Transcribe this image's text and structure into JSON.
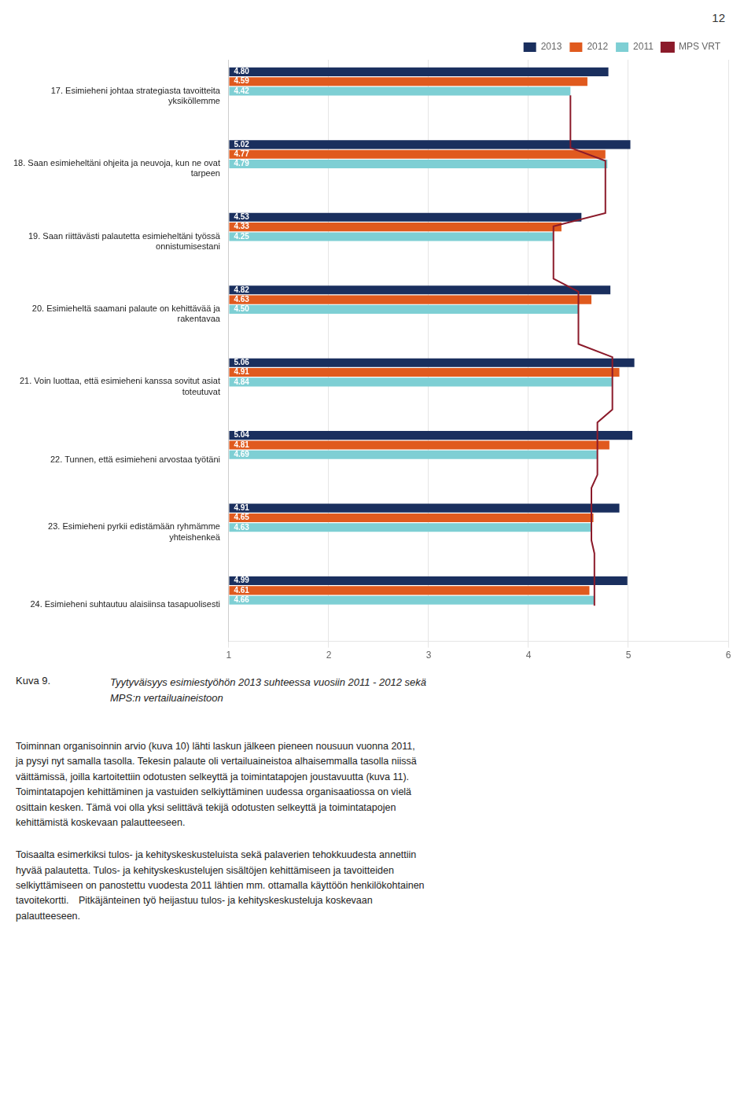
{
  "chart_data": {
    "type": "bar",
    "orientation": "horizontal",
    "title": "Kuva 9.",
    "subtitle": "Tyytyväisyys esimiestyöhön 2013 suhteessa vuosiin 2011 - 2012 sekä\nMPS:n vertailuaineistoon",
    "annotations": [
      "12",
      "Toiminnan organisoinnin arvio ​(kuva 10)​ lähti laskun jälkeen pieneen nousuun vuonna 2011,\nja pysyi nyt samalla tasolla. Tekesin palaute oli vertailuaineistoa alhaisemmalla tasolla niissä\nväittämissä, joilla kartoitettiin odotusten selkeyttä ja toimintatapojen joustavuutta (kuva 11).\nToimintatapojen kehittäminen ja vastuiden selkiyttäminen uudessa organisaatiossa on vielä\nosittain kesken. Tämä voi olla yksi selittävä tekijä odotusten selkeyttä ja toimintatapojen\nkehittämistä koskevaan palautteeseen.",
      "Toisaalta esimerkiksi tulos- ja kehityskeskusteluista sekä palaverien tehokkuudesta annettiin\nhyvää palautetta. Tulos- ja kehityskeskustelujen sisältöjen kehittämiseen ja tavoitteiden\nselkiyttämiseen on panostettu vuodesta 2011 lähtien mm. ottamalla käyttöön henkilökohtainen\ntavoitekortti. Pitkäjänteinen työ heijastuu tulos- ja kehityskeskusteluja koskevaan\npalautteeseen."
    ],
    "categories": [
      "17. Esimieheni johtaa strategiasta tavoitteita\nyksiköllemme",
      "18. Saan esimieheltäni ohjeita ja neuvoja, kun ne ovat\ntarpeen",
      "19. Saan riittävästi palautetta esimieheltäni työssä\nonnistumisestani",
      "20. Esimieheltä saamani palaute on kehittävää ja\nrakentavaa",
      "21. Voin luottaa, että esimieheni kanssa sovitut asiat\ntoteutuvat",
      "22. Tunnen, että esimieheni arvostaa työtäni",
      "23. Esimieheni pyrkii edistämään ryhmämme\nyhteishenkeä",
      "24. Esimieheni suhtautuu alaisiinsa tasapuolisesti"
    ],
    "series": [
      {
        "name": "2013",
        "color": "#1a2f5e",
        "values": [
          4.8,
          5.02,
          4.53,
          4.82,
          5.06,
          5.04,
          4.91,
          4.99
        ],
        "value_labels": [
          "4.80",
          "5.02",
          "4.53",
          "4.82",
          "5.06",
          "5.04",
          "4.91",
          "4.99"
        ]
      },
      {
        "name": "2012",
        "color": "#e05a1e",
        "values": [
          4.59,
          4.77,
          4.33,
          4.63,
          4.91,
          4.81,
          4.65,
          4.61
        ],
        "value_labels": [
          "4.59",
          "4.77",
          "4.33",
          "4.63",
          "4.91",
          "4.81",
          "4.65",
          "4.61"
        ]
      },
      {
        "name": "2011",
        "color": "#7ecfd4",
        "values": [
          4.42,
          4.79,
          4.25,
          4.5,
          4.84,
          4.69,
          4.63,
          4.66
        ],
        "value_labels": [
          "4.42",
          "4.79",
          "4.25",
          "4.50",
          "4.84",
          "4.69",
          "4.63",
          "4.66"
        ]
      },
      {
        "name": "MPS VRT",
        "type": "line",
        "color": "#8b1a2a",
        "values": [
          4.42,
          4.77,
          4.25,
          4.5,
          4.84,
          4.69,
          4.63,
          4.66
        ]
      }
    ],
    "xlim": [
      1,
      6
    ],
    "xticks": [
      1,
      2,
      3,
      4,
      5,
      6
    ],
    "grid": true,
    "legend": "top right",
    "data_labels": true
  }
}
